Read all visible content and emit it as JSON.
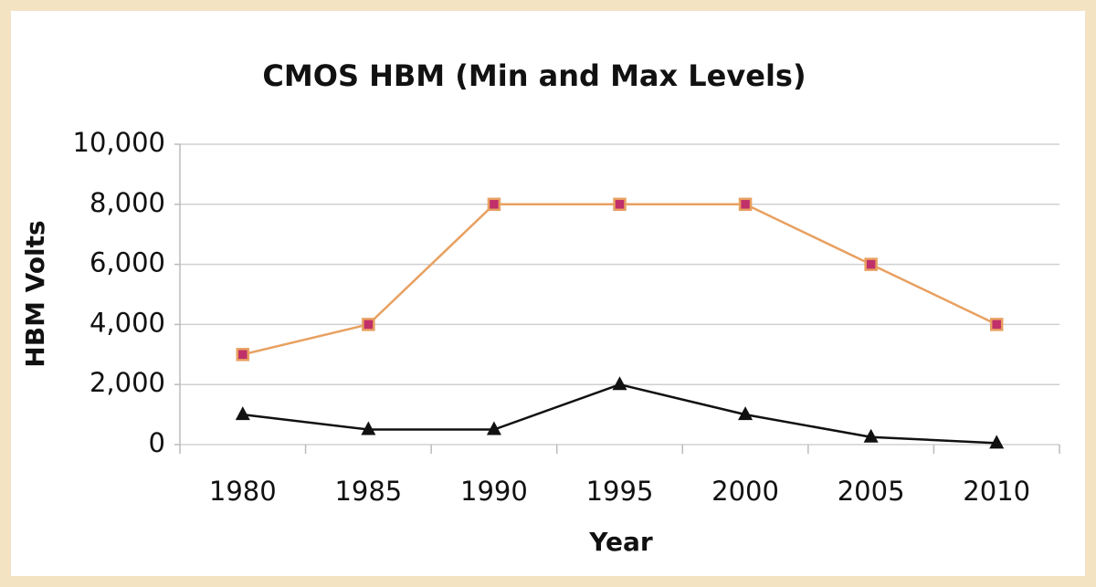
{
  "chart_data": {
    "type": "line",
    "title": "CMOS HBM (Min and Max Levels)",
    "x_label": "Year",
    "y_label": "HBM Volts",
    "categories": [
      "1980",
      "1985",
      "1990",
      "1995",
      "2000",
      "2005",
      "2010"
    ],
    "series": [
      {
        "color": "#e8a060",
        "marker": "square",
        "marker_color": "#c0306a",
        "values": [
          3000,
          4000,
          8000,
          8000,
          8000,
          6000,
          4000
        ]
      },
      {
        "color": "#111111",
        "marker": "triangle",
        "marker_color": "#111111",
        "values": [
          1000,
          500,
          500,
          2000,
          1000,
          250,
          50
        ]
      }
    ],
    "ylim": [
      0,
      10000
    ],
    "yticks": [
      0,
      {
        "value": 2000,
        "label": "2,000"
      },
      {
        "value": 4000,
        "label": "4,000"
      },
      {
        "value": 6000,
        "label": "6,000"
      },
      {
        "value": 8000,
        "label": "8,000"
      },
      {
        "value": 10000,
        "label": "10,000"
      }
    ],
    "grid": true
  }
}
